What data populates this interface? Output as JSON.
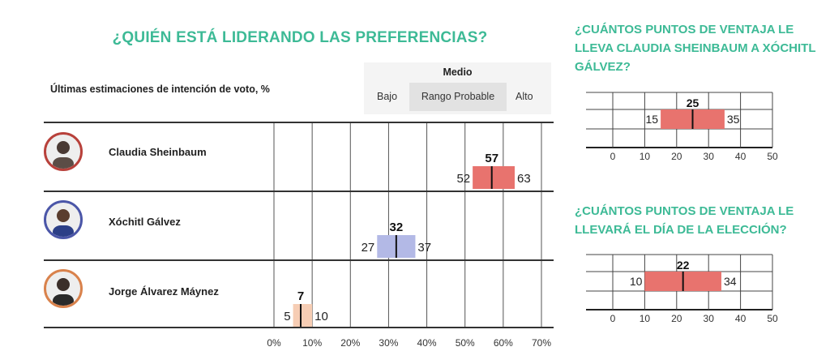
{
  "main": {
    "title": "¿QUIÉN ESTÁ LIDERANDO LAS PREFERENCIAS?",
    "subtitle": "Últimas estimaciones de intención de voto, %"
  },
  "legend": {
    "medio": "Medio",
    "bajo": "Bajo",
    "rango": "Rango Probable",
    "alto": "Alto"
  },
  "chart_data": [
    {
      "type": "bar",
      "title": "¿QUIÉN ESTÁ LIDERANDO LAS PREFERENCIAS?",
      "subtitle": "Últimas estimaciones de intención de voto, %",
      "x_ticks": [
        0,
        10,
        20,
        30,
        40,
        50,
        60,
        70
      ],
      "x_tick_labels": [
        "0%",
        "10%",
        "20%",
        "30%",
        "40%",
        "50%",
        "60%",
        "70%"
      ],
      "xlim": [
        0,
        70
      ],
      "candidates": [
        {
          "name": "Claudia Sheinbaum",
          "low": 52,
          "mid": 57,
          "high": 63,
          "color": "#e8736e",
          "ring": "#b8413b"
        },
        {
          "name": "Xóchitl Gálvez",
          "low": 27,
          "mid": 32,
          "high": 37,
          "color": "#b3b9e6",
          "ring": "#4b56a8"
        },
        {
          "name": "Jorge Álvarez Máynez",
          "low": 5,
          "mid": 7,
          "high": 10,
          "color": "#f6cdb4",
          "ring": "#d9824c"
        }
      ]
    },
    {
      "type": "bar",
      "title": "¿CUÁNTOS PUNTOS DE VENTAJA LE LLEVA CLAUDIA SHEINBAUM A XÓCHITL GÁLVEZ?",
      "x_ticks": [
        0,
        10,
        20,
        30,
        40,
        50
      ],
      "xlim": [
        0,
        50
      ],
      "low": 15,
      "mid": 25,
      "high": 35,
      "color": "#e8736e"
    },
    {
      "type": "bar",
      "title": "¿CUÁNTOS PUNTOS DE VENTAJA LE LLEVARÁ EL DÍA DE LA ELECCIÓN?",
      "x_ticks": [
        0,
        10,
        20,
        30,
        40,
        50
      ],
      "xlim": [
        0,
        50
      ],
      "low": 10,
      "mid": 22,
      "high": 34,
      "color": "#e8736e"
    }
  ]
}
